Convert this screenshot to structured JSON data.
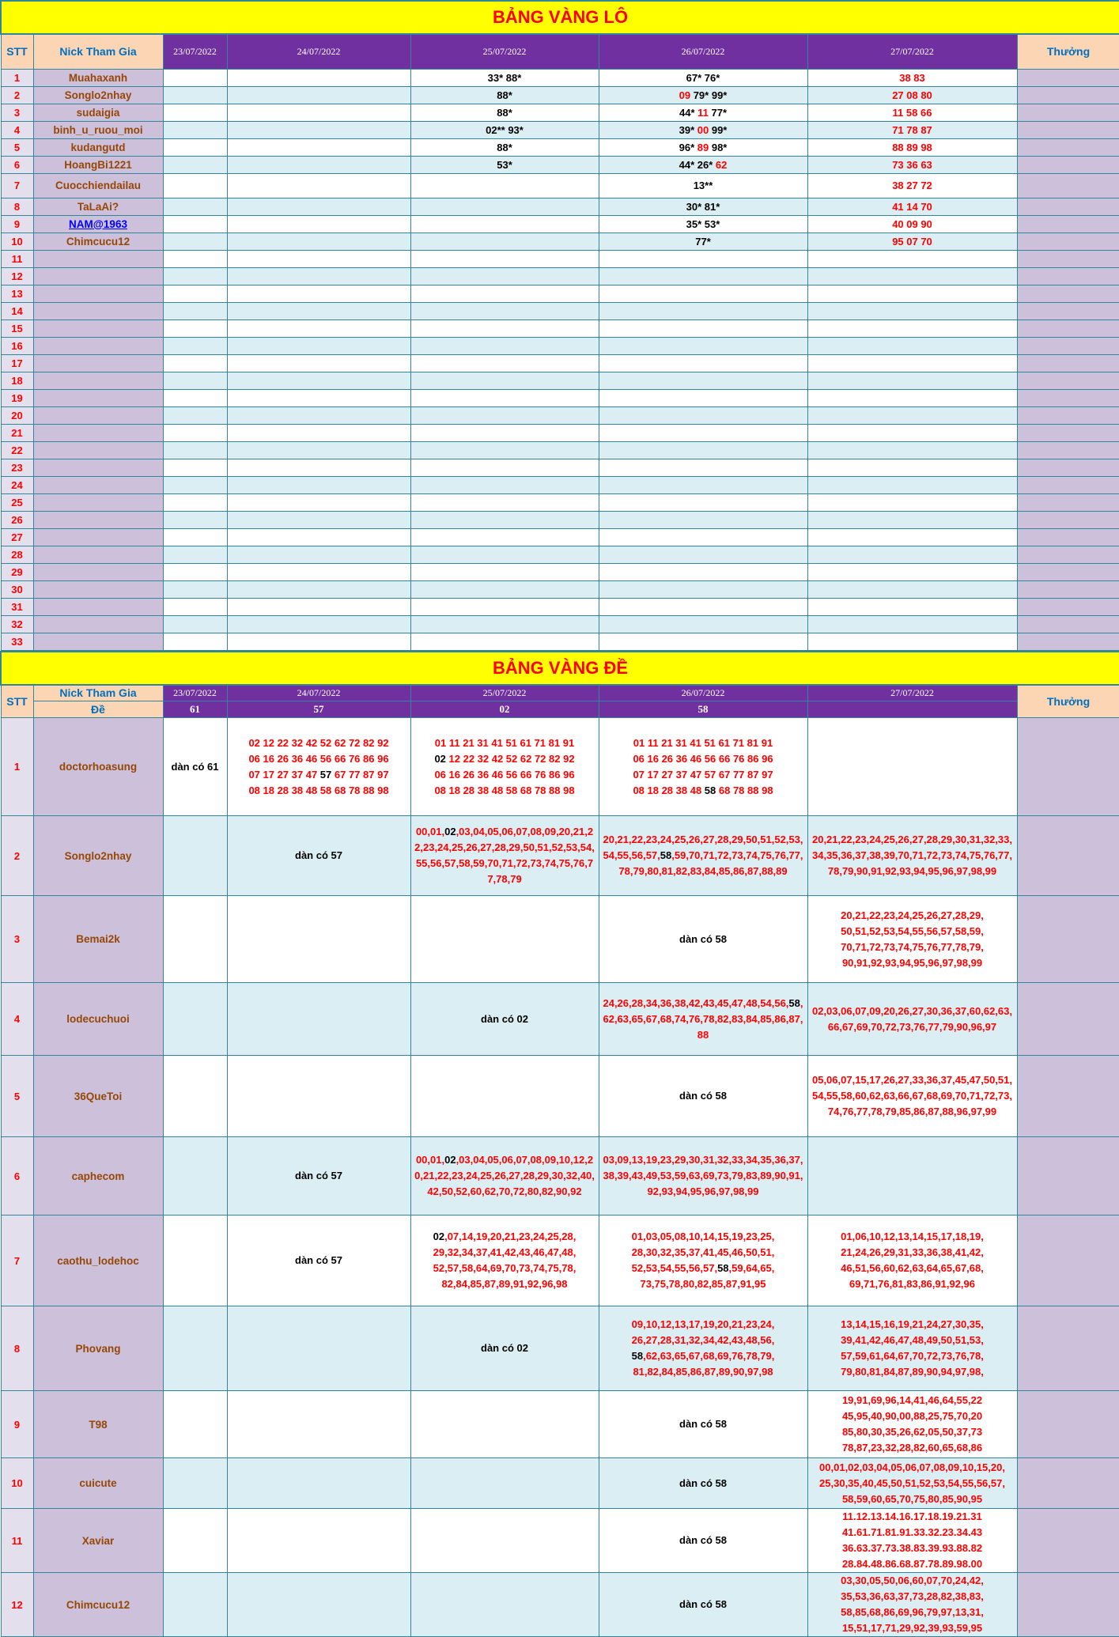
{
  "colors": {
    "title_bg": "#ffff00",
    "title_text": "#ff0000",
    "header_bg": "#7030a0",
    "header_label_bg": "#fcd5b4",
    "nick_bg": "#ccc0da",
    "row_alt_bg": "#daeef3",
    "border": "#31869b",
    "name_text": "#974706",
    "hit_number": "#000000",
    "pick_number": "#ff0000"
  },
  "lo": {
    "title": "BẢNG VÀNG LÔ",
    "headers": {
      "stt": "STT",
      "nick": "Nick Tham Gia",
      "dates": [
        "23/07/2022",
        "24/07/2022",
        "25/07/2022",
        "26/07/2022",
        "27/07/2022"
      ],
      "prize": "Thưởng"
    },
    "rows": [
      {
        "stt": "1",
        "nick": "Muahaxanh",
        "cells": [
          [],
          [],
          [
            {
              "t": "33* 88*",
              "c": "k"
            }
          ],
          [
            {
              "t": "67* 76*",
              "c": "k"
            }
          ],
          [
            {
              "t": "38 83",
              "c": "r"
            }
          ]
        ]
      },
      {
        "stt": "2",
        "nick": "Songlo2nhay",
        "cells": [
          [],
          [],
          [
            {
              "t": "88*",
              "c": "k"
            }
          ],
          [
            {
              "t": "09",
              "c": "r"
            },
            {
              "t": " 79* 99*",
              "c": "k"
            }
          ],
          [
            {
              "t": "27 08 80",
              "c": "r"
            }
          ]
        ]
      },
      {
        "stt": "3",
        "nick": "sudaigia",
        "cells": [
          [],
          [],
          [
            {
              "t": "88*",
              "c": "k"
            }
          ],
          [
            {
              "t": "44* ",
              "c": "k"
            },
            {
              "t": "11",
              "c": "r"
            },
            {
              "t": " 77*",
              "c": "k"
            }
          ],
          [
            {
              "t": "11 58 66",
              "c": "r"
            }
          ]
        ]
      },
      {
        "stt": "4",
        "nick": "binh_u_ruou_moi",
        "cells": [
          [],
          [],
          [
            {
              "t": "02** 93*",
              "c": "k"
            }
          ],
          [
            {
              "t": "39* ",
              "c": "k"
            },
            {
              "t": "00",
              "c": "r"
            },
            {
              "t": " 99*",
              "c": "k"
            }
          ],
          [
            {
              "t": "71 78 87",
              "c": "r"
            }
          ]
        ]
      },
      {
        "stt": "5",
        "nick": "kudangutd",
        "cells": [
          [],
          [],
          [
            {
              "t": "88*",
              "c": "k"
            }
          ],
          [
            {
              "t": "96* ",
              "c": "k"
            },
            {
              "t": "89",
              "c": "r"
            },
            {
              "t": " 98*",
              "c": "k"
            }
          ],
          [
            {
              "t": "88 89 98",
              "c": "r"
            }
          ]
        ]
      },
      {
        "stt": "6",
        "nick": "HoangBi1221",
        "cells": [
          [],
          [],
          [
            {
              "t": "53*",
              "c": "k"
            }
          ],
          [
            {
              "t": "44* 26* ",
              "c": "k"
            },
            {
              "t": "62",
              "c": "r"
            }
          ],
          [
            {
              "t": "73 36 63",
              "c": "r"
            }
          ]
        ]
      },
      {
        "stt": "7",
        "nick": "Cuocchiendailau",
        "cells": [
          [],
          [],
          [],
          [
            {
              "t": "13**",
              "c": "k"
            }
          ],
          [
            {
              "t": "38 27 72",
              "c": "r"
            }
          ]
        ]
      },
      {
        "stt": "8",
        "nick": "TaLaAi?",
        "cells": [
          [],
          [],
          [],
          [
            {
              "t": "30* 81*",
              "c": "k"
            }
          ],
          [
            {
              "t": "41 14 70",
              "c": "r"
            }
          ]
        ]
      },
      {
        "stt": "9",
        "nick": "NAM@1963",
        "nick_link": true,
        "cells": [
          [],
          [],
          [],
          [
            {
              "t": "35* 53*",
              "c": "k"
            }
          ],
          [
            {
              "t": "40 09 90",
              "c": "r"
            }
          ]
        ]
      },
      {
        "stt": "10",
        "nick": "Chimcucu12",
        "cells": [
          [],
          [],
          [],
          [
            {
              "t": "77*",
              "c": "k"
            }
          ],
          [
            {
              "t": "95 07 70",
              "c": "r"
            }
          ]
        ]
      },
      {
        "stt": "11"
      },
      {
        "stt": "12"
      },
      {
        "stt": "13"
      },
      {
        "stt": "14"
      },
      {
        "stt": "15"
      },
      {
        "stt": "16"
      },
      {
        "stt": "17"
      },
      {
        "stt": "18"
      },
      {
        "stt": "19"
      },
      {
        "stt": "20"
      },
      {
        "stt": "21"
      },
      {
        "stt": "22"
      },
      {
        "stt": "23"
      },
      {
        "stt": "24"
      },
      {
        "stt": "25"
      },
      {
        "stt": "26"
      },
      {
        "stt": "27"
      },
      {
        "stt": "28"
      },
      {
        "stt": "29"
      },
      {
        "stt": "30"
      },
      {
        "stt": "31"
      },
      {
        "stt": "32"
      },
      {
        "stt": "33"
      }
    ]
  },
  "de": {
    "title": "BẢNG VÀNG ĐỀ",
    "headers": {
      "stt": "STT",
      "nick": "Nick Tham Gia",
      "de_label": "Đề",
      "dates": [
        "23/07/2022",
        "24/07/2022",
        "25/07/2022",
        "26/07/2022",
        "27/07/2022"
      ],
      "results": [
        "61",
        "57",
        "02",
        "58",
        ""
      ],
      "prize": "Thưởng"
    },
    "rows": [
      {
        "stt": "1",
        "nick": "doctorhoasung",
        "cells": [
          [
            {
              "t": "dàn có 61",
              "c": "k"
            }
          ],
          [
            {
              "t": "02 12 22 32 42 52 62 72 82 92\n06 16 26 36 46 56 66 76 86 96\n07 17 27 37 47 ",
              "c": "r"
            },
            {
              "t": "57",
              "c": "k"
            },
            {
              "t": " 67 77 87 97\n08 18 28 38 48 58 68 78 88 98",
              "c": "r"
            }
          ],
          [
            {
              "t": "01 11 21 31 41 51 61 71 81 91\n",
              "c": "r"
            },
            {
              "t": "02",
              "c": "k"
            },
            {
              "t": " 12 22 32 42 52 62 72 82 92\n06 16 26 36 46 56 66 76 86 96\n08 18 28 38 48 58 68 78 88 98",
              "c": "r"
            }
          ],
          [
            {
              "t": "01 11 21 31 41 51 61 71 81 91\n06 16 26 36 46 56 66 76 86 96\n07 17 27 37 47 57 67 77 87 97\n08 18 28 38 48 ",
              "c": "r"
            },
            {
              "t": "58",
              "c": "k"
            },
            {
              "t": " 68 78 88 98",
              "c": "r"
            }
          ],
          []
        ]
      },
      {
        "stt": "2",
        "nick": "Songlo2nhay",
        "cells": [
          [],
          [
            {
              "t": "dàn có 57",
              "c": "k"
            }
          ],
          [
            {
              "t": "00,01,",
              "c": "r"
            },
            {
              "t": "02",
              "c": "k"
            },
            {
              "t": ",03,04,05,06,07,08,09,20,21,22,23,24,25,26,27,28,29,50,51,52,53,54,55,56,57,58,59,70,71,72,73,74,75,76,77,78,79",
              "c": "r"
            }
          ],
          [
            {
              "t": "20,21,22,23,24,25,26,27,28,29,50,51,52,53,54,55,56,57,",
              "c": "r"
            },
            {
              "t": "58",
              "c": "k"
            },
            {
              "t": ",59,70,71,72,73,74,75,76,77,78,79,80,81,82,83,84,85,86,87,88,89",
              "c": "r"
            }
          ],
          [
            {
              "t": "20,21,22,23,24,25,26,27,28,29,30,31,32,33,34,35,36,37,38,39,70,71,72,73,74,75,76,77,78,79,90,91,92,93,94,95,96,97,98,99",
              "c": "r"
            }
          ]
        ]
      },
      {
        "stt": "3",
        "nick": "Bemai2k",
        "cells": [
          [],
          [],
          [],
          [
            {
              "t": "dàn có 58",
              "c": "k"
            }
          ],
          [
            {
              "t": "20,21,22,23,24,25,26,27,28,29,\n50,51,52,53,54,55,56,57,58,59,\n70,71,72,73,74,75,76,77,78,79,\n90,91,92,93,94,95,96,97,98,99",
              "c": "r"
            }
          ]
        ]
      },
      {
        "stt": "4",
        "nick": "lodecuchuoi",
        "cells": [
          [],
          [],
          [
            {
              "t": "dàn có 02",
              "c": "k"
            }
          ],
          [
            {
              "t": "24,26,28,34,36,38,42,43,45,47,48,54,56,",
              "c": "r"
            },
            {
              "t": "58",
              "c": "k"
            },
            {
              "t": ",62,63,65,67,68,74,76,78,82,83,84,85,86,87,88",
              "c": "r"
            }
          ],
          [
            {
              "t": "02,03,06,07,09,20,26,27,30,36,37,60,62,63,66,67,69,70,72,73,76,77,79,90,96,97",
              "c": "r"
            }
          ]
        ]
      },
      {
        "stt": "5",
        "nick": "36QueToi",
        "cells": [
          [],
          [],
          [],
          [
            {
              "t": "dàn có 58",
              "c": "k"
            }
          ],
          [
            {
              "t": "05,06,07,15,17,26,27,33,36,37,45,47,50,51,54,55,58,60,62,63,66,67,68,69,70,71,72,73,74,76,77,78,79,85,86,87,88,96,97,99",
              "c": "r"
            }
          ]
        ]
      },
      {
        "stt": "6",
        "nick": "caphecom",
        "cells": [
          [],
          [
            {
              "t": "dàn có 57",
              "c": "k"
            }
          ],
          [
            {
              "t": "00,01,",
              "c": "r"
            },
            {
              "t": "02",
              "c": "k"
            },
            {
              "t": ",03,04,05,06,07,08,09,10,12,20,21,22,23,24,25,26,27,28,29,30,32,40,42,50,52,60,62,70,72,80,82,90,92",
              "c": "r"
            }
          ],
          [
            {
              "t": "03,09,13,19,23,29,30,31,32,33,34,35,36,37,38,39,43,49,53,59,63,69,73,79,83,89,90,91,92,93,94,95,96,97,98,99",
              "c": "r"
            }
          ],
          []
        ]
      },
      {
        "stt": "7",
        "nick": "caothu_lodehoc",
        "cells": [
          [],
          [
            {
              "t": "dàn có 57",
              "c": "k"
            }
          ],
          [
            {
              "t": "02",
              "c": "k"
            },
            {
              "t": ",07,14,19,20,21,23,24,25,28,\n29,32,34,37,41,42,43,46,47,48,\n52,57,58,64,69,70,73,74,75,78,\n82,84,85,87,89,91,92,96,98",
              "c": "r"
            }
          ],
          [
            {
              "t": "01,03,05,08,10,14,15,19,23,25,\n28,30,32,35,37,41,45,46,50,51,\n52,53,54,55,56,57,",
              "c": "r"
            },
            {
              "t": "58",
              "c": "k"
            },
            {
              "t": ",59,64,65,\n73,75,78,80,82,85,87,91,95",
              "c": "r"
            }
          ],
          [
            {
              "t": "01,06,10,12,13,14,15,17,18,19,\n21,24,26,29,31,33,36,38,41,42,\n46,51,56,60,62,63,64,65,67,68,\n69,71,76,81,83,86,91,92,96",
              "c": "r"
            }
          ]
        ]
      },
      {
        "stt": "8",
        "nick": "Phovang",
        "cells": [
          [],
          [],
          [
            {
              "t": "dàn có 02",
              "c": "k"
            }
          ],
          [
            {
              "t": "09,10,12,13,17,19,20,21,23,24,\n26,27,28,31,32,34,42,43,48,56,\n",
              "c": "r"
            },
            {
              "t": "58",
              "c": "k"
            },
            {
              "t": ",62,63,65,67,68,69,76,78,79,\n81,82,84,85,86,87,89,90,97,98",
              "c": "r"
            }
          ],
          [
            {
              "t": "13,14,15,16,19,21,24,27,30,35,\n39,41,42,46,47,48,49,50,51,53,\n57,59,61,64,67,70,72,73,76,78,\n79,80,81,84,87,89,90,94,97,98,",
              "c": "r"
            }
          ]
        ]
      },
      {
        "stt": "9",
        "nick": "T98",
        "cells": [
          [],
          [],
          [],
          [
            {
              "t": "dàn có 58",
              "c": "k"
            }
          ],
          [
            {
              "t": "19,91,69,96,14,41,46,64,55,22\n45,95,40,90,00,88,25,75,70,20\n85,80,30,35,26,62,05,50,37,73\n78,87,23,32,28,82,60,65,68,86",
              "c": "r"
            }
          ]
        ]
      },
      {
        "stt": "10",
        "nick": "cuicute",
        "cells": [
          [],
          [],
          [],
          [
            {
              "t": "dàn có 58",
              "c": "k"
            }
          ],
          [
            {
              "t": "00,01,02,03,04,05,06,07,08,09,10,15,20,\n25,30,35,40,45,50,51,52,53,54,55,56,57,\n58,59,60,65,70,75,80,85,90,95",
              "c": "r"
            }
          ]
        ]
      },
      {
        "stt": "11",
        "nick": "Xaviar",
        "cells": [
          [],
          [],
          [],
          [
            {
              "t": "dàn có 58",
              "c": "k"
            }
          ],
          [
            {
              "t": "11.12.13.14.16.17.18.19.21.31\n41.61.71.81.91.33.32.23.34.43\n36.63.37.73.38.83.39.93.88.82\n28.84.48.86.68.87.78.89.98.00",
              "c": "r"
            }
          ]
        ]
      },
      {
        "stt": "12",
        "nick": "Chimcucu12",
        "cells": [
          [],
          [],
          [],
          [
            {
              "t": "dàn có 58",
              "c": "k"
            }
          ],
          [
            {
              "t": "03,30,05,50,06,60,07,70,24,42,\n35,53,36,63,37,73,28,82,38,83,\n58,85,68,86,69,96,79,97,13,31,\n15,51,17,71,29,92,39,93,59,95",
              "c": "r"
            }
          ]
        ]
      }
    ]
  }
}
